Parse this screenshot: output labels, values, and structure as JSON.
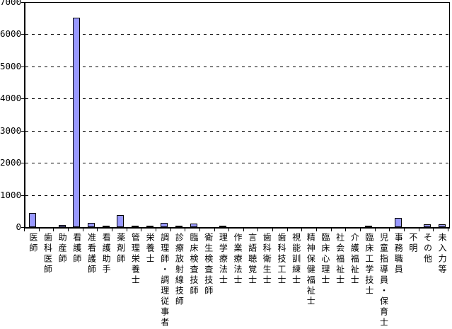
{
  "chart_data": {
    "type": "bar",
    "categories": [
      "医師",
      "歯科医師",
      "助産師",
      "看護師",
      "准看護師",
      "看護助手",
      "薬剤師",
      "管理栄養士",
      "栄養士",
      "調理師・調理従事者",
      "診療放射線技師",
      "臨床検査技師",
      "衛生検査技師",
      "理学療法士",
      "作業療法士",
      "言語聴覚士",
      "歯科衛生士",
      "歯科技工士",
      "視能訓練士",
      "精神保健福祉士",
      "臨床心理士",
      "社会福祉士",
      "介護福祉士",
      "臨床工学技士",
      "児童指導員・保育士",
      "事務職員",
      "不明",
      "その他",
      "未入力等"
    ],
    "values": [
      450,
      0,
      65,
      6520,
      140,
      35,
      370,
      40,
      50,
      135,
      45,
      120,
      0,
      20,
      0,
      0,
      0,
      0,
      0,
      0,
      0,
      0,
      0,
      20,
      0,
      280,
      0,
      90,
      90
    ],
    "ylim": [
      0,
      7000
    ],
    "yticks": [
      0,
      1000,
      2000,
      3000,
      4000,
      5000,
      6000,
      7000
    ],
    "grid": "horizontal-dashed",
    "legend": "none",
    "bar_color": "#9999ff",
    "bar_border_color": "#000000",
    "background_color": "#ffffff",
    "plot_border_color": "#000000"
  }
}
